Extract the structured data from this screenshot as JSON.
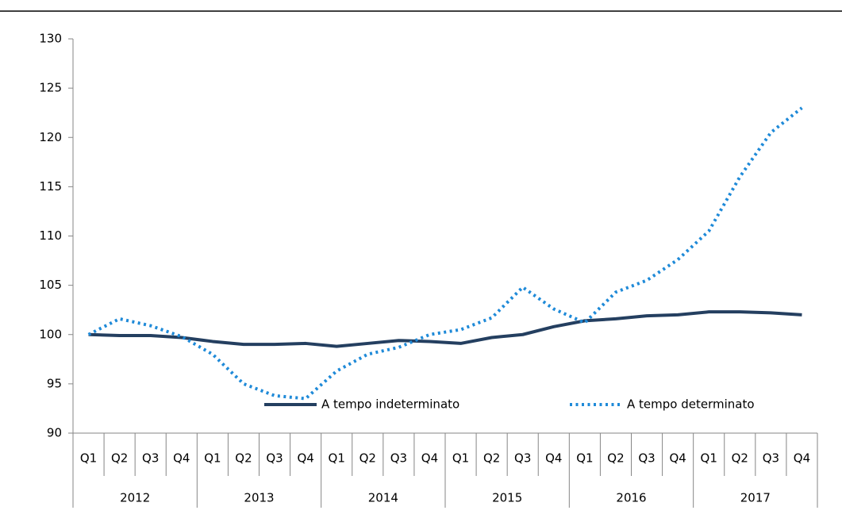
{
  "chart_data": {
    "type": "line",
    "categories": [
      "Q1",
      "Q2",
      "Q3",
      "Q4",
      "Q1",
      "Q2",
      "Q3",
      "Q4",
      "Q1",
      "Q2",
      "Q3",
      "Q4",
      "Q1",
      "Q2",
      "Q3",
      "Q4",
      "Q1",
      "Q2",
      "Q3",
      "Q4",
      "Q1",
      "Q2",
      "Q3",
      "Q4"
    ],
    "groups": [
      "2012",
      "2013",
      "2014",
      "2015",
      "2016",
      "2017"
    ],
    "series": [
      {
        "name": "A tempo indeterminato",
        "color": "#243f60",
        "style": "solid",
        "values": [
          100,
          99.9,
          99.9,
          99.7,
          99.3,
          99.0,
          99.0,
          99.1,
          98.8,
          99.1,
          99.4,
          99.3,
          99.1,
          99.7,
          100.0,
          100.8,
          101.4,
          101.6,
          101.9,
          102.0,
          102.3,
          102.3,
          102.2,
          102.0
        ]
      },
      {
        "name": "A tempo determinato",
        "color": "#1f8ad8",
        "style": "dotted",
        "values": [
          100,
          101.6,
          100.9,
          99.8,
          98.0,
          95.0,
          93.8,
          93.5,
          96.3,
          98.0,
          98.7,
          100.0,
          100.5,
          101.7,
          104.8,
          102.6,
          101.2,
          104.3,
          105.5,
          107.6,
          110.5,
          116.0,
          120.5,
          123.0
        ]
      }
    ],
    "ylim": [
      90,
      130
    ],
    "yticks": [
      90,
      95,
      100,
      105,
      110,
      115,
      120,
      125,
      130
    ],
    "grid": false,
    "legend": "bottom"
  }
}
